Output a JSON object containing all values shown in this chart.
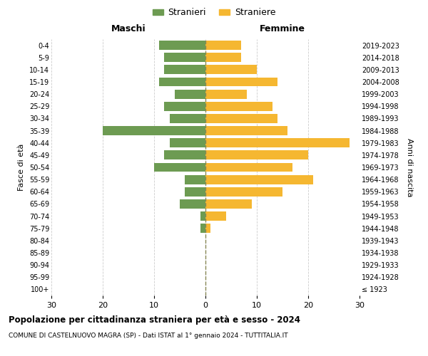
{
  "age_groups": [
    "100+",
    "95-99",
    "90-94",
    "85-89",
    "80-84",
    "75-79",
    "70-74",
    "65-69",
    "60-64",
    "55-59",
    "50-54",
    "45-49",
    "40-44",
    "35-39",
    "30-34",
    "25-29",
    "20-24",
    "15-19",
    "10-14",
    "5-9",
    "0-4"
  ],
  "birth_years": [
    "≤ 1923",
    "1924-1928",
    "1929-1933",
    "1934-1938",
    "1939-1943",
    "1944-1948",
    "1949-1953",
    "1954-1958",
    "1959-1963",
    "1964-1968",
    "1969-1973",
    "1974-1978",
    "1979-1983",
    "1984-1988",
    "1989-1993",
    "1994-1998",
    "1999-2003",
    "2004-2008",
    "2009-2013",
    "2014-2018",
    "2019-2023"
  ],
  "males": [
    0,
    0,
    0,
    0,
    0,
    1,
    1,
    5,
    4,
    4,
    10,
    8,
    7,
    20,
    7,
    8,
    6,
    9,
    8,
    8,
    9
  ],
  "females": [
    0,
    0,
    0,
    0,
    0,
    1,
    4,
    9,
    15,
    21,
    17,
    20,
    28,
    16,
    14,
    13,
    8,
    14,
    10,
    7,
    7
  ],
  "male_color": "#6d9b52",
  "female_color": "#f5b731",
  "male_label": "Stranieri",
  "female_label": "Straniere",
  "title": "Popolazione per cittadinanza straniera per età e sesso - 2024",
  "subtitle": "COMUNE DI CASTELNUOVO MAGRA (SP) - Dati ISTAT al 1° gennaio 2024 - TUTTITALIA.IT",
  "left_header": "Maschi",
  "right_header": "Femmine",
  "ylabel_left": "Fasce di età",
  "ylabel_right": "Anni di nascita",
  "xlim": 30,
  "background_color": "#ffffff",
  "grid_color": "#cccccc"
}
